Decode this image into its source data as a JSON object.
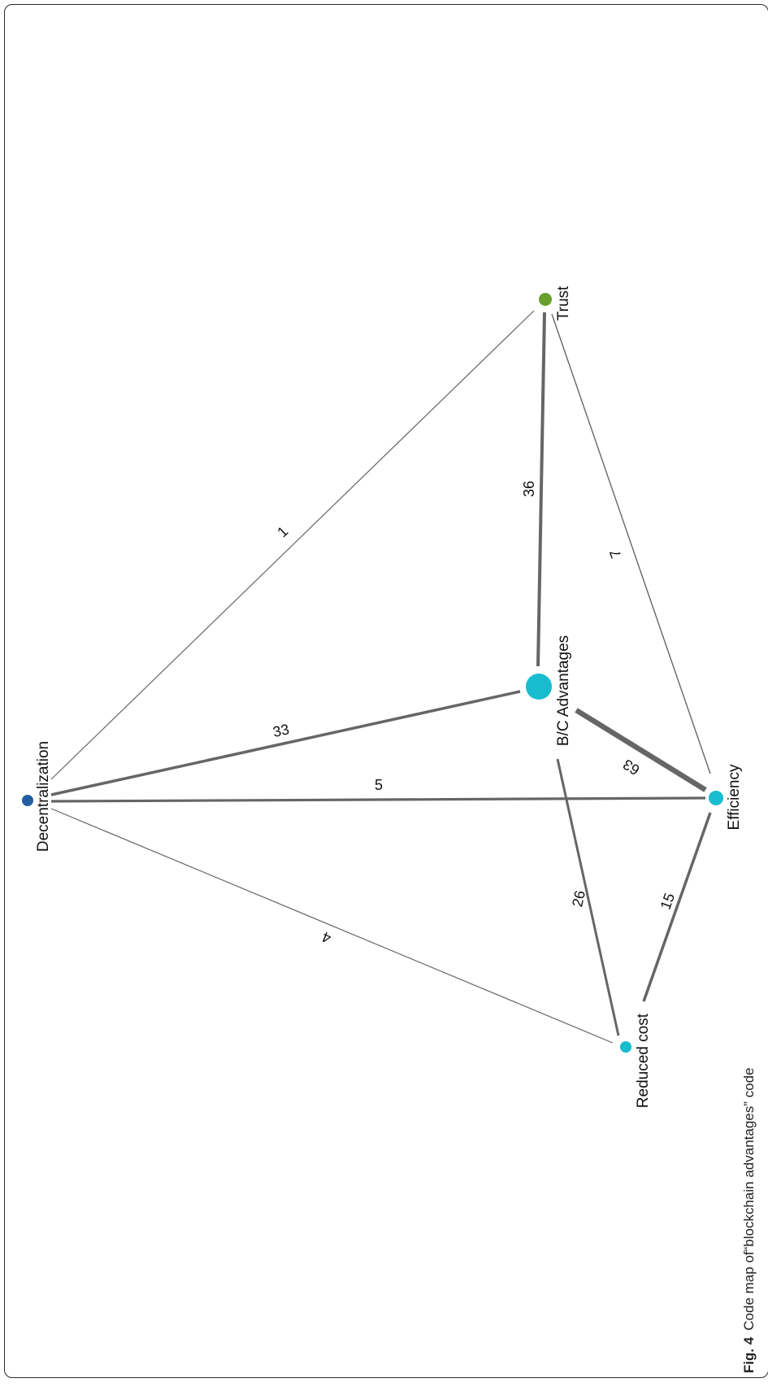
{
  "caption": {
    "figure_number": "Fig. 4",
    "text": "Code map of“blockchain advantages” code"
  },
  "nodes": [
    {
      "id": "decentralization",
      "label": "Decentralization",
      "color": "#1f5fa0"
    },
    {
      "id": "trust",
      "label": "Trust",
      "color": "#6a9e2f"
    },
    {
      "id": "bc_advantages",
      "label": "B/C Advantages",
      "color": "#17bccf"
    },
    {
      "id": "efficiency",
      "label": "Efficiency",
      "color": "#17bccf"
    },
    {
      "id": "reduced_cost",
      "label": "Reduced cost",
      "color": "#17bccf"
    }
  ],
  "edges": [
    {
      "source": "decentralization",
      "target": "trust",
      "weight": "1"
    },
    {
      "source": "decentralization",
      "target": "bc_advantages",
      "weight": "33"
    },
    {
      "source": "decentralization",
      "target": "efficiency",
      "weight": "5"
    },
    {
      "source": "decentralization",
      "target": "reduced_cost",
      "weight": "4"
    },
    {
      "source": "trust",
      "target": "bc_advantages",
      "weight": "36"
    },
    {
      "source": "trust",
      "target": "efficiency",
      "weight": "7"
    },
    {
      "source": "bc_advantages",
      "target": "efficiency",
      "weight": "63"
    },
    {
      "source": "bc_advantages",
      "target": "reduced_cost",
      "weight": "26"
    },
    {
      "source": "efficiency",
      "target": "reduced_cost",
      "weight": "15"
    }
  ],
  "colors": {
    "edge": "#666666",
    "frame": "#2b2b2b"
  }
}
